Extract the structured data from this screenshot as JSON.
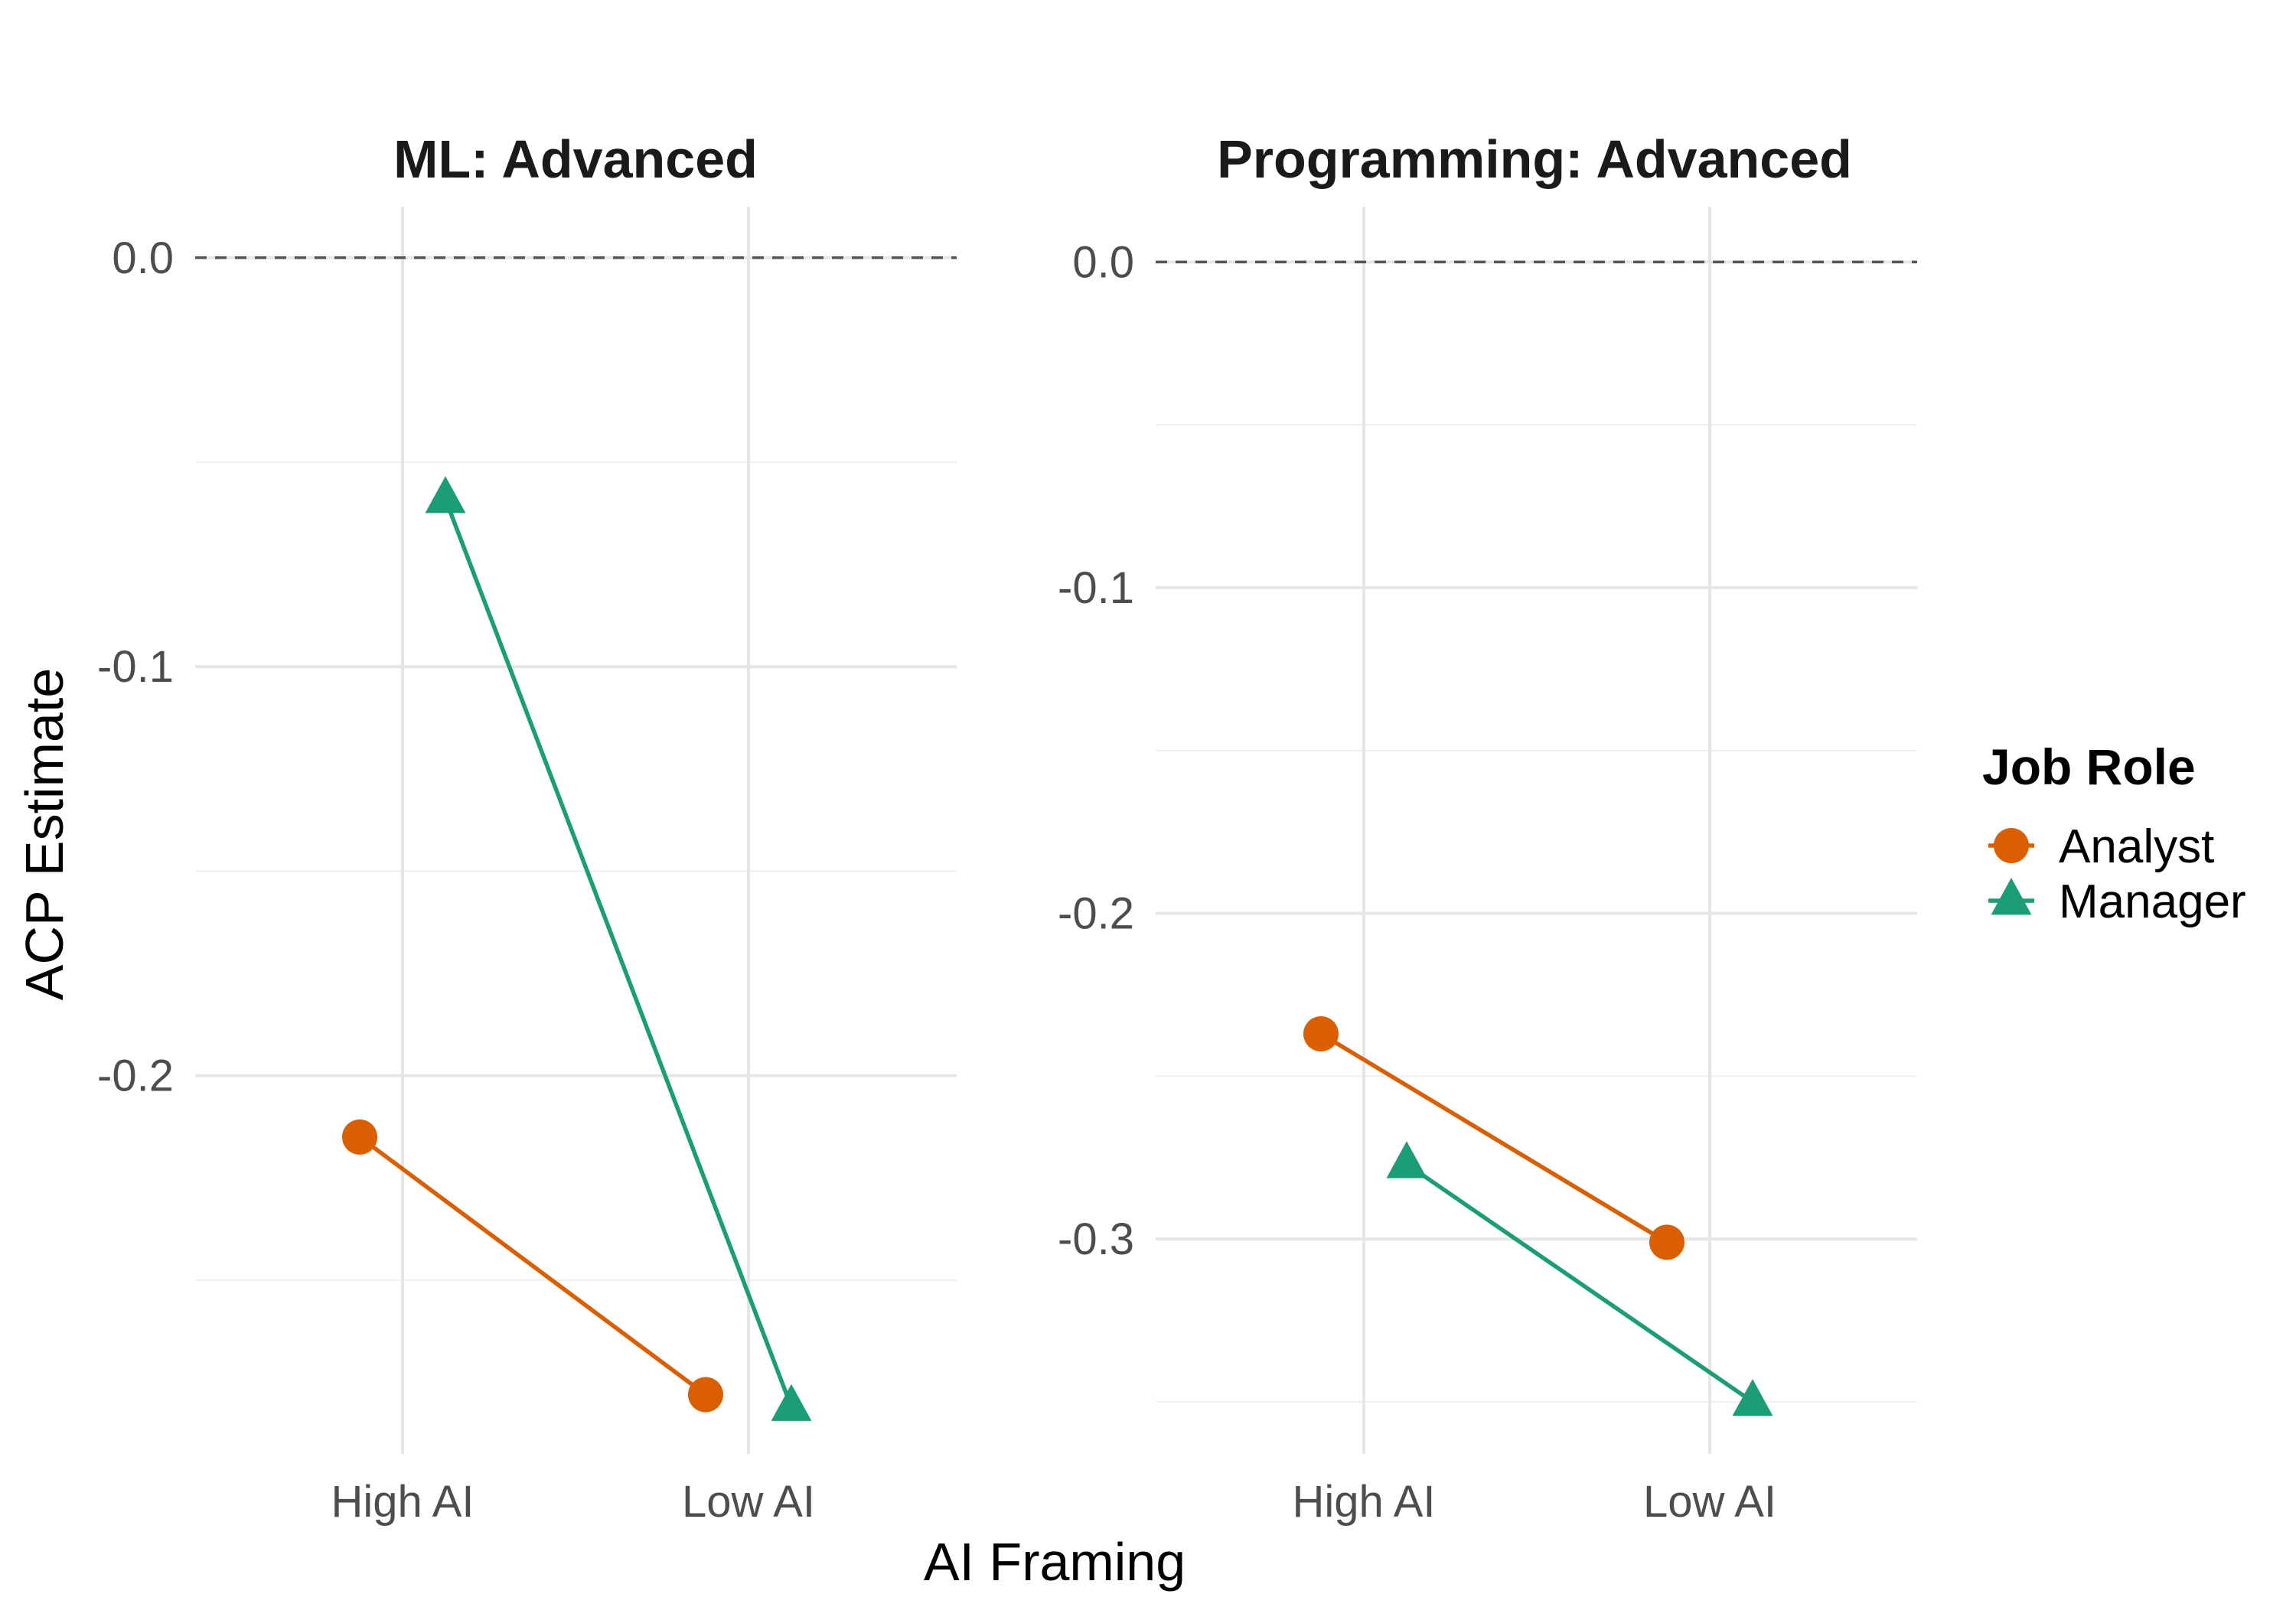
{
  "chart_data": {
    "type": "line",
    "xlabel": "AI Framing",
    "ylabel": "ACP Estimate",
    "categories": [
      "High AI",
      "Low AI"
    ],
    "legend": {
      "title": "Job Role",
      "position": "right",
      "entries": [
        {
          "name": "Analyst",
          "color": "#D95F02",
          "shape": "circle"
        },
        {
          "name": "Manager",
          "color": "#1B9E77",
          "shape": "triangle"
        }
      ]
    },
    "reference_line": {
      "y": 0,
      "style": "dashed"
    },
    "grid": true,
    "panels": [
      {
        "title": "ML: Advanced",
        "ylim": [
          -0.2925,
          0.0125
        ],
        "yticks": [
          0.0,
          -0.1,
          -0.2
        ],
        "ytick_labels": [
          "0.0",
          "-0.1",
          "-0.2"
        ],
        "series": [
          {
            "name": "Analyst",
            "values": [
              -0.215,
              -0.278
            ]
          },
          {
            "name": "Manager",
            "values": [
              -0.059,
              -0.281
            ]
          }
        ]
      },
      {
        "title": "Programming: Advanced",
        "ylim": [
          -0.366,
          0.017
        ],
        "yticks": [
          0.0,
          -0.1,
          -0.2,
          -0.3
        ],
        "ytick_labels": [
          "0.0",
          "-0.1",
          "-0.2",
          "-0.3"
        ],
        "series": [
          {
            "name": "Analyst",
            "values": [
              -0.237,
              -0.301
            ]
          },
          {
            "name": "Manager",
            "values": [
              -0.277,
              -0.35
            ]
          }
        ]
      }
    ]
  }
}
